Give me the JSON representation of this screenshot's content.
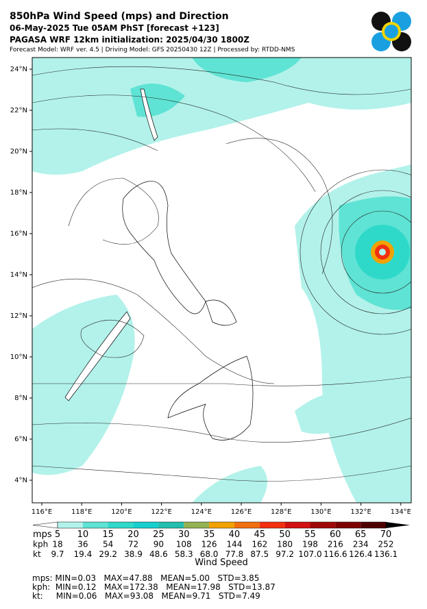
{
  "header": {
    "title": "850hPa Wind Speed (mps) and Direction",
    "valid": "06-May-2025 Tue 05AM PhST [forecast +123]",
    "init": "PAGASA WRF 12km initialization: 2025/04/30 1800Z",
    "credits": "Forecast Model: WRF ver. 4.5 | Driving Model: GFS 20250430 12Z | Processed by: RTDD-NMS"
  },
  "map": {
    "lat_labels": [
      "24°N",
      "22°N",
      "20°N",
      "18°N",
      "16°N",
      "14°N",
      "12°N",
      "10°N",
      "8°N",
      "6°N",
      "4°N"
    ],
    "lon_labels": [
      "116°E",
      "118°E",
      "120°E",
      "122°E",
      "124°E",
      "126°E",
      "128°E",
      "130°E",
      "132°E",
      "134°E"
    ]
  },
  "colorbar": {
    "colors": [
      "#ffffff",
      "#b2f2ea",
      "#5fe3d4",
      "#2fd9c9",
      "#18cfcf",
      "#22bfae",
      "#93b152",
      "#f2a200",
      "#f27010",
      "#f23010",
      "#d21010",
      "#a00808",
      "#7d0000",
      "#4e0000",
      "#000000"
    ],
    "rows": [
      {
        "unit": "mps",
        "values": [
          "5",
          "10",
          "15",
          "20",
          "25",
          "30",
          "35",
          "40",
          "45",
          "50",
          "55",
          "60",
          "65",
          "70"
        ]
      },
      {
        "unit": "kph",
        "values": [
          "18",
          "36",
          "54",
          "72",
          "90",
          "108",
          "126",
          "144",
          "162",
          "180",
          "198",
          "216",
          "234",
          "252"
        ]
      },
      {
        "unit": "kt",
        "values": [
          "9.7",
          "19.4",
          "29.2",
          "38.9",
          "48.6",
          "58.3",
          "68.0",
          "77.8",
          "87.5",
          "97.2",
          "107.0",
          "116.6",
          "126.4",
          "136.1"
        ]
      }
    ],
    "label": "Wind Speed"
  },
  "stats": [
    "mps: MIN=0.03   MAX=47.88   MEAN=5.00   STD=3.85",
    "kph:  MIN=0.12   MAX=172.38   MEAN=17.98   STD=13.87",
    "kt:     MIN=0.06   MAX=93.08   MEAN=9.71   STD=7.49"
  ]
}
